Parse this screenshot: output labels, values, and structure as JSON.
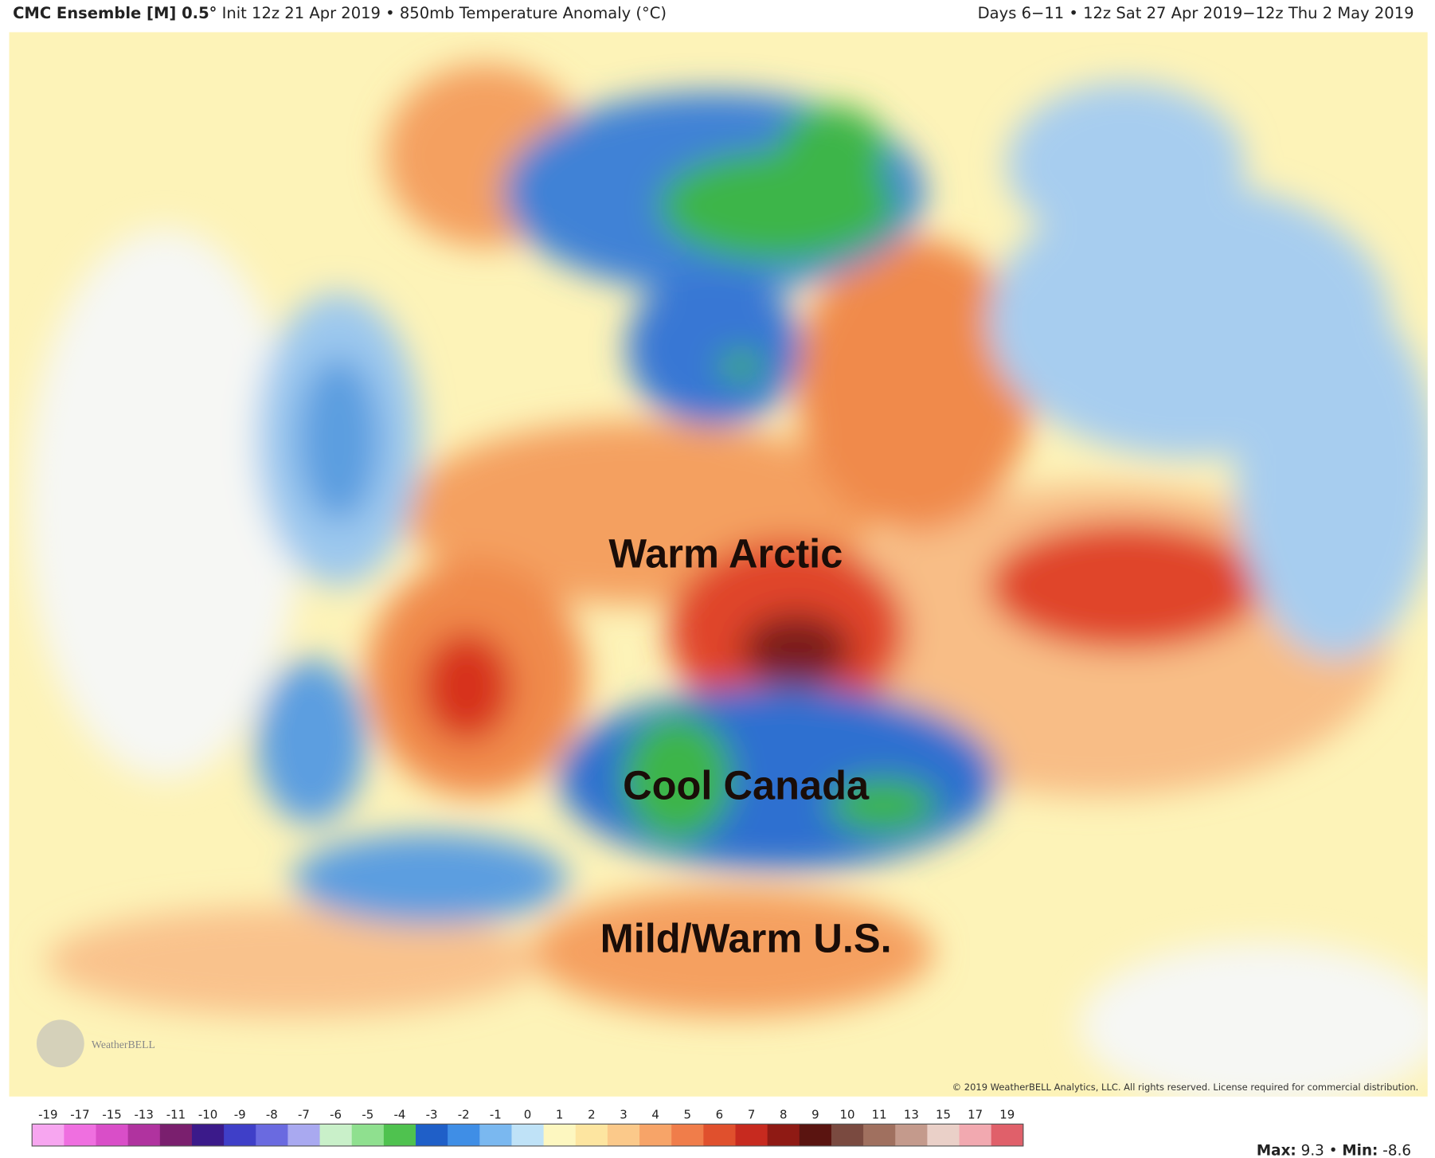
{
  "header": {
    "title_bold": "CMC Ensemble [M] 0.5°",
    "title_rest": " Init 12z 21 Apr 2019 • 850mb Temperature Anomaly (°C)",
    "valid": "Days 6−11 • 12z Sat 27 Apr 2019−12z Thu 2 May 2019"
  },
  "annotations": [
    "Warm Arctic",
    "Cool Canada",
    "Mild/Warm U.S."
  ],
  "logo": "WeatherBELL",
  "copyright": "© 2019 WeatherBELL Analytics, LLC. All rights reserved. License required for commercial distribution.",
  "colorbar": {
    "ticks": [
      -19,
      -17,
      -15,
      -13,
      -11,
      -10,
      -9,
      -8,
      -7,
      -6,
      -5,
      -4,
      -3,
      -2,
      -1,
      0,
      1,
      2,
      3,
      4,
      5,
      6,
      7,
      8,
      9,
      10,
      11,
      13,
      15,
      17,
      19
    ],
    "colors": [
      "#f7a6f0",
      "#ef6fe0",
      "#d94ec8",
      "#b0339f",
      "#7a1f6e",
      "#3b1a8a",
      "#3f3fc8",
      "#6a6ae0",
      "#a9a9f0",
      "#c9f0c9",
      "#8fe08f",
      "#4fc24f",
      "#1f5fc8",
      "#3f8ee6",
      "#7ab8f0",
      "#bfe2f7",
      "#fdf7c0",
      "#fde5a0",
      "#fbc98a",
      "#f7a468",
      "#f07d4a",
      "#e0502d",
      "#c72a1f",
      "#8f1a14",
      "#5a1410",
      "#7a4a40",
      "#a0705f",
      "#c49a8c",
      "#ead0c8",
      "#f2a9b0",
      "#e0606a"
    ]
  },
  "stats": {
    "max_label": "Max:",
    "max": 9.3,
    "separator": "•",
    "min_label": "Min:",
    "min": -8.6
  }
}
